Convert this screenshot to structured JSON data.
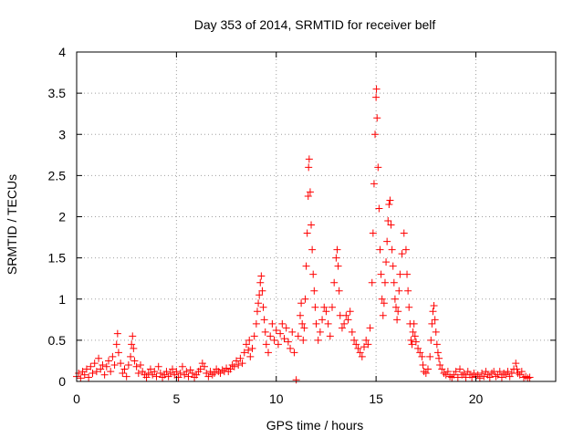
{
  "chart_data": {
    "type": "scatter",
    "title": "Day 353 of 2014, SRMTID for receiver belf",
    "xlabel": "GPS time / hours",
    "ylabel": "SRMTID / TECUs",
    "xlim": [
      0,
      24
    ],
    "ylim": [
      0,
      4
    ],
    "xticks": [
      0,
      5,
      10,
      15,
      20
    ],
    "yticks": [
      0,
      0.5,
      1,
      1.5,
      2,
      2.5,
      3,
      3.5,
      4
    ],
    "xtick_labels": [
      "0",
      "5",
      "10",
      "15",
      "20"
    ],
    "ytick_labels": [
      "0",
      "0.5",
      "1",
      "1.5",
      "2",
      "2.5",
      "3",
      "3.5",
      "4"
    ],
    "grid": true,
    "marker": "+",
    "color": "#ff0000",
    "series": [
      {
        "name": "SRMTID",
        "points": [
          [
            0.0,
            0.06
          ],
          [
            0.1,
            0.1
          ],
          [
            0.2,
            0.04
          ],
          [
            0.3,
            0.12
          ],
          [
            0.4,
            0.08
          ],
          [
            0.5,
            0.15
          ],
          [
            0.6,
            0.05
          ],
          [
            0.7,
            0.18
          ],
          [
            0.8,
            0.1
          ],
          [
            0.9,
            0.22
          ],
          [
            1.0,
            0.12
          ],
          [
            1.1,
            0.28
          ],
          [
            1.2,
            0.15
          ],
          [
            1.3,
            0.2
          ],
          [
            1.4,
            0.08
          ],
          [
            1.5,
            0.18
          ],
          [
            1.6,
            0.25
          ],
          [
            1.7,
            0.12
          ],
          [
            1.8,
            0.3
          ],
          [
            1.9,
            0.2
          ],
          [
            2.0,
            0.45
          ],
          [
            2.05,
            0.58
          ],
          [
            2.1,
            0.35
          ],
          [
            2.2,
            0.22
          ],
          [
            2.3,
            0.1
          ],
          [
            2.4,
            0.15
          ],
          [
            2.5,
            0.06
          ],
          [
            2.6,
            0.2
          ],
          [
            2.7,
            0.3
          ],
          [
            2.75,
            0.45
          ],
          [
            2.8,
            0.55
          ],
          [
            2.85,
            0.4
          ],
          [
            2.9,
            0.25
          ],
          [
            3.0,
            0.18
          ],
          [
            3.1,
            0.1
          ],
          [
            3.2,
            0.2
          ],
          [
            3.3,
            0.12
          ],
          [
            3.4,
            0.08
          ],
          [
            3.5,
            0.05
          ],
          [
            3.6,
            0.1
          ],
          [
            3.7,
            0.15
          ],
          [
            3.8,
            0.08
          ],
          [
            3.9,
            0.12
          ],
          [
            4.0,
            0.06
          ],
          [
            4.1,
            0.18
          ],
          [
            4.2,
            0.1
          ],
          [
            4.3,
            0.05
          ],
          [
            4.4,
            0.08
          ],
          [
            4.5,
            0.12
          ],
          [
            4.6,
            0.06
          ],
          [
            4.7,
            0.1
          ],
          [
            4.8,
            0.15
          ],
          [
            4.9,
            0.08
          ],
          [
            5.0,
            0.12
          ],
          [
            5.1,
            0.05
          ],
          [
            5.2,
            0.1
          ],
          [
            5.3,
            0.18
          ],
          [
            5.4,
            0.08
          ],
          [
            5.5,
            0.12
          ],
          [
            5.6,
            0.06
          ],
          [
            5.7,
            0.14
          ],
          [
            5.8,
            0.1
          ],
          [
            5.9,
            0.05
          ],
          [
            6.0,
            0.08
          ],
          [
            6.1,
            0.12
          ],
          [
            6.2,
            0.15
          ],
          [
            6.3,
            0.22
          ],
          [
            6.4,
            0.18
          ],
          [
            6.5,
            0.1
          ],
          [
            6.6,
            0.06
          ],
          [
            6.7,
            0.12
          ],
          [
            6.8,
            0.08
          ],
          [
            6.9,
            0.1
          ],
          [
            7.0,
            0.15
          ],
          [
            7.1,
            0.12
          ],
          [
            7.2,
            0.1
          ],
          [
            7.3,
            0.14
          ],
          [
            7.4,
            0.12
          ],
          [
            7.5,
            0.16
          ],
          [
            7.6,
            0.12
          ],
          [
            7.7,
            0.15
          ],
          [
            7.8,
            0.2
          ],
          [
            7.9,
            0.18
          ],
          [
            8.0,
            0.25
          ],
          [
            8.1,
            0.2
          ],
          [
            8.2,
            0.28
          ],
          [
            8.3,
            0.22
          ],
          [
            8.4,
            0.35
          ],
          [
            8.5,
            0.45
          ],
          [
            8.6,
            0.38
          ],
          [
            8.65,
            0.5
          ],
          [
            8.7,
            0.3
          ],
          [
            8.8,
            0.4
          ],
          [
            8.9,
            0.55
          ],
          [
            9.0,
            0.7
          ],
          [
            9.05,
            0.85
          ],
          [
            9.1,
            0.95
          ],
          [
            9.15,
            1.05
          ],
          [
            9.2,
            1.2
          ],
          [
            9.25,
            1.28
          ],
          [
            9.3,
            1.1
          ],
          [
            9.35,
            0.9
          ],
          [
            9.4,
            0.75
          ],
          [
            9.45,
            0.6
          ],
          [
            9.5,
            0.45
          ],
          [
            9.6,
            0.35
          ],
          [
            9.7,
            0.55
          ],
          [
            9.8,
            0.7
          ],
          [
            9.9,
            0.5
          ],
          [
            10.0,
            0.62
          ],
          [
            10.1,
            0.45
          ],
          [
            10.2,
            0.58
          ],
          [
            10.3,
            0.7
          ],
          [
            10.4,
            0.52
          ],
          [
            10.5,
            0.65
          ],
          [
            10.6,
            0.48
          ],
          [
            10.7,
            0.4
          ],
          [
            10.8,
            0.6
          ],
          [
            10.9,
            0.35
          ],
          [
            11.0,
            0.02
          ],
          [
            11.1,
            0.55
          ],
          [
            11.2,
            0.8
          ],
          [
            11.25,
            0.95
          ],
          [
            11.3,
            0.7
          ],
          [
            11.35,
            0.5
          ],
          [
            11.4,
            0.65
          ],
          [
            11.45,
            1.0
          ],
          [
            11.5,
            1.4
          ],
          [
            11.55,
            1.8
          ],
          [
            11.6,
            2.25
          ],
          [
            11.62,
            2.6
          ],
          [
            11.65,
            2.7
          ],
          [
            11.7,
            2.3
          ],
          [
            11.75,
            1.9
          ],
          [
            11.8,
            1.6
          ],
          [
            11.85,
            1.3
          ],
          [
            11.9,
            1.1
          ],
          [
            11.95,
            0.9
          ],
          [
            12.0,
            0.7
          ],
          [
            12.1,
            0.5
          ],
          [
            12.2,
            0.6
          ],
          [
            12.3,
            0.75
          ],
          [
            12.4,
            0.9
          ],
          [
            12.5,
            0.85
          ],
          [
            12.6,
            0.7
          ],
          [
            12.7,
            0.55
          ],
          [
            12.8,
            0.9
          ],
          [
            12.9,
            1.2
          ],
          [
            13.0,
            1.5
          ],
          [
            13.05,
            1.6
          ],
          [
            13.1,
            1.4
          ],
          [
            13.15,
            1.1
          ],
          [
            13.2,
            0.8
          ],
          [
            13.3,
            0.65
          ],
          [
            13.4,
            0.7
          ],
          [
            13.5,
            0.8
          ],
          [
            13.6,
            0.75
          ],
          [
            13.7,
            0.85
          ],
          [
            13.8,
            0.6
          ],
          [
            13.9,
            0.5
          ],
          [
            14.0,
            0.45
          ],
          [
            14.1,
            0.4
          ],
          [
            14.2,
            0.35
          ],
          [
            14.3,
            0.3
          ],
          [
            14.4,
            0.42
          ],
          [
            14.5,
            0.5
          ],
          [
            14.6,
            0.45
          ],
          [
            14.7,
            0.65
          ],
          [
            14.8,
            1.2
          ],
          [
            14.85,
            1.8
          ],
          [
            14.9,
            2.4
          ],
          [
            14.95,
            3.0
          ],
          [
            15.0,
            3.45
          ],
          [
            15.02,
            3.55
          ],
          [
            15.05,
            3.2
          ],
          [
            15.1,
            2.6
          ],
          [
            15.15,
            2.1
          ],
          [
            15.2,
            1.6
          ],
          [
            15.25,
            1.3
          ],
          [
            15.3,
            1.0
          ],
          [
            15.35,
            0.8
          ],
          [
            15.4,
            0.95
          ],
          [
            15.45,
            1.2
          ],
          [
            15.5,
            1.45
          ],
          [
            15.55,
            1.7
          ],
          [
            15.6,
            1.95
          ],
          [
            15.65,
            2.15
          ],
          [
            15.7,
            2.2
          ],
          [
            15.75,
            1.9
          ],
          [
            15.8,
            1.6
          ],
          [
            15.85,
            1.4
          ],
          [
            15.9,
            1.2
          ],
          [
            15.95,
            1.0
          ],
          [
            16.0,
            0.9
          ],
          [
            16.05,
            0.75
          ],
          [
            16.1,
            0.85
          ],
          [
            16.15,
            1.1
          ],
          [
            16.2,
            1.3
          ],
          [
            16.3,
            1.55
          ],
          [
            16.4,
            1.8
          ],
          [
            16.5,
            1.6
          ],
          [
            16.55,
            1.3
          ],
          [
            16.6,
            1.1
          ],
          [
            16.65,
            0.9
          ],
          [
            16.7,
            0.7
          ],
          [
            16.75,
            0.5
          ],
          [
            16.8,
            0.45
          ],
          [
            16.85,
            0.6
          ],
          [
            16.9,
            0.7
          ],
          [
            16.95,
            0.55
          ],
          [
            17.0,
            0.48
          ],
          [
            17.1,
            0.4
          ],
          [
            17.2,
            0.35
          ],
          [
            17.3,
            0.3
          ],
          [
            17.35,
            0.2
          ],
          [
            17.4,
            0.12
          ],
          [
            17.5,
            0.1
          ],
          [
            17.6,
            0.15
          ],
          [
            17.7,
            0.3
          ],
          [
            17.75,
            0.5
          ],
          [
            17.8,
            0.7
          ],
          [
            17.85,
            0.85
          ],
          [
            17.9,
            0.92
          ],
          [
            17.95,
            0.75
          ],
          [
            18.0,
            0.6
          ],
          [
            18.05,
            0.45
          ],
          [
            18.1,
            0.35
          ],
          [
            18.15,
            0.28
          ],
          [
            18.2,
            0.2
          ],
          [
            18.3,
            0.15
          ],
          [
            18.4,
            0.1
          ],
          [
            18.5,
            0.08
          ],
          [
            18.6,
            0.12
          ],
          [
            18.7,
            0.06
          ],
          [
            18.8,
            0.05
          ],
          [
            18.9,
            0.08
          ],
          [
            19.0,
            0.12
          ],
          [
            19.1,
            0.05
          ],
          [
            19.2,
            0.15
          ],
          [
            19.3,
            0.08
          ],
          [
            19.4,
            0.1
          ],
          [
            19.5,
            0.05
          ],
          [
            19.6,
            0.12
          ],
          [
            19.7,
            0.08
          ],
          [
            19.8,
            0.05
          ],
          [
            19.9,
            0.1
          ],
          [
            20.0,
            0.06
          ],
          [
            20.1,
            0.08
          ],
          [
            20.2,
            0.04
          ],
          [
            20.3,
            0.1
          ],
          [
            20.4,
            0.06
          ],
          [
            20.5,
            0.12
          ],
          [
            20.6,
            0.08
          ],
          [
            20.7,
            0.05
          ],
          [
            20.8,
            0.1
          ],
          [
            20.9,
            0.12
          ],
          [
            21.0,
            0.06
          ],
          [
            21.1,
            0.08
          ],
          [
            21.2,
            0.12
          ],
          [
            21.3,
            0.05
          ],
          [
            21.4,
            0.1
          ],
          [
            21.5,
            0.08
          ],
          [
            21.6,
            0.12
          ],
          [
            21.7,
            0.06
          ],
          [
            21.8,
            0.1
          ],
          [
            21.9,
            0.15
          ],
          [
            22.0,
            0.22
          ],
          [
            22.05,
            0.15
          ],
          [
            22.1,
            0.1
          ],
          [
            22.2,
            0.08
          ],
          [
            22.3,
            0.12
          ],
          [
            22.4,
            0.05
          ],
          [
            22.5,
            0.06
          ],
          [
            22.6,
            0.04
          ],
          [
            22.7,
            0.05
          ]
        ]
      }
    ]
  }
}
